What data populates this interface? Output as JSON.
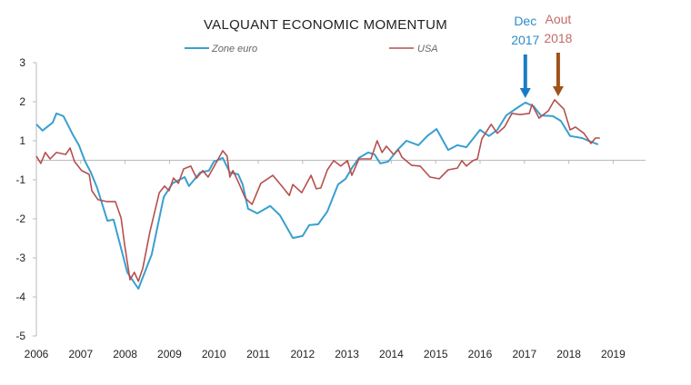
{
  "chart_data": {
    "type": "line",
    "title": "VALQUANT ECONOMIC MOMENTUM",
    "xlabel": "",
    "ylabel": "",
    "x_tick_labels": [
      "2006",
      "2007",
      "2008",
      "2009",
      "2010",
      "2011",
      "2012",
      "2013",
      "2014",
      "2015",
      "2016",
      "2017",
      "2018",
      "2019"
    ],
    "y_tick_labels": [
      "3",
      "2",
      "1",
      "-1",
      "-2",
      "-3",
      "-4",
      "-5"
    ],
    "y_ticks": [
      3,
      2,
      1,
      -1,
      -2,
      -3,
      -4,
      -5
    ],
    "xlim": [
      2006,
      2019.7
    ],
    "ylim": [
      -5,
      3
    ],
    "grid": false,
    "legend_position": "top",
    "series": [
      {
        "name": "Zone euro",
        "color": "#3a9fd0",
        "x": [
          2006.0,
          2006.14,
          2006.37,
          2006.45,
          2006.61,
          2006.82,
          2006.96,
          2007.09,
          2007.23,
          2007.37,
          2007.6,
          2007.74,
          2007.89,
          2008.05,
          2008.3,
          2008.6,
          2008.87,
          2009.07,
          2009.34,
          2009.44,
          2009.69,
          2009.89,
          2010.0,
          2010.2,
          2010.36,
          2010.55,
          2010.65,
          2010.77,
          2010.98,
          2011.27,
          2011.49,
          2011.78,
          2012.0,
          2012.15,
          2012.35,
          2012.56,
          2012.8,
          2012.97,
          2013.11,
          2013.27,
          2013.48,
          2013.62,
          2013.75,
          2013.93,
          2014.14,
          2014.34,
          2014.61,
          2014.81,
          2015.02,
          2015.28,
          2015.49,
          2015.69,
          2016.0,
          2016.2,
          2016.39,
          2016.59,
          2016.86,
          2017.02,
          2017.21,
          2017.37,
          2017.64,
          2017.82,
          2018.03,
          2018.3,
          2018.44,
          2018.66
        ],
        "values": [
          1.42,
          1.26,
          1.47,
          1.7,
          1.63,
          1.16,
          0.77,
          -0.02,
          -0.63,
          -1.21,
          -2.05,
          -2.02,
          -2.67,
          -3.37,
          -3.79,
          -2.91,
          -1.44,
          -1.09,
          -0.86,
          -1.16,
          -0.63,
          -0.53,
          -0.07,
          0.12,
          -0.63,
          -0.72,
          -1.12,
          -1.74,
          -1.86,
          -1.67,
          -1.91,
          -2.49,
          -2.44,
          -2.16,
          -2.14,
          -1.81,
          -1.12,
          -0.95,
          -0.4,
          0.12,
          0.4,
          0.3,
          -0.16,
          -0.07,
          0.53,
          1.0,
          0.77,
          1.12,
          1.3,
          0.53,
          0.77,
          0.67,
          1.28,
          1.12,
          1.28,
          1.65,
          1.86,
          1.98,
          1.88,
          1.65,
          1.63,
          1.51,
          1.12,
          1.07,
          1.0,
          0.81
        ]
      },
      {
        "name": "USA",
        "color": "#b5504e",
        "x": [
          2006.0,
          2006.1,
          2006.2,
          2006.31,
          2006.45,
          2006.66,
          2006.76,
          2006.86,
          2007.02,
          2007.19,
          2007.25,
          2007.39,
          2007.6,
          2007.78,
          2007.91,
          2007.99,
          2008.11,
          2008.21,
          2008.3,
          2008.4,
          2008.56,
          2008.77,
          2008.89,
          2008.99,
          2009.09,
          2009.2,
          2009.32,
          2009.48,
          2009.61,
          2009.75,
          2009.87,
          2010.1,
          2010.2,
          2010.3,
          2010.36,
          2010.43,
          2010.55,
          2010.71,
          2010.86,
          2011.06,
          2011.33,
          2011.53,
          2011.7,
          2011.78,
          2011.98,
          2012.19,
          2012.31,
          2012.41,
          2012.56,
          2012.7,
          2012.86,
          2013.01,
          2013.11,
          2013.27,
          2013.54,
          2013.68,
          2013.79,
          2013.89,
          2014.05,
          2014.16,
          2014.24,
          2014.46,
          2014.65,
          2014.87,
          2015.08,
          2015.28,
          2015.49,
          2015.59,
          2015.69,
          2015.84,
          2015.94,
          2016.04,
          2016.25,
          2016.39,
          2016.55,
          2016.72,
          2016.9,
          2017.11,
          2017.17,
          2017.33,
          2017.54,
          2017.68,
          2017.89,
          2018.03,
          2018.15,
          2018.34,
          2018.5,
          2018.6,
          2018.7
        ],
        "values": [
          0.21,
          -0.16,
          0.4,
          0.07,
          0.4,
          0.3,
          0.63,
          -0.07,
          -0.53,
          -0.72,
          -1.28,
          -1.51,
          -1.56,
          -1.56,
          -1.98,
          -2.67,
          -3.56,
          -3.37,
          -3.6,
          -3.26,
          -2.33,
          -1.33,
          -1.16,
          -1.28,
          -0.91,
          -1.09,
          -0.44,
          -0.3,
          -0.91,
          -0.53,
          -0.86,
          0.07,
          0.49,
          0.21,
          -0.86,
          -0.53,
          -1.05,
          -1.47,
          -1.63,
          -1.09,
          -0.77,
          -1.16,
          -1.4,
          -1.12,
          -1.33,
          -0.77,
          -1.23,
          -1.21,
          -0.49,
          -0.02,
          -0.3,
          -0.02,
          -0.77,
          0.07,
          0.07,
          1.0,
          0.4,
          0.72,
          0.3,
          0.53,
          0.16,
          -0.26,
          -0.3,
          -0.86,
          -0.95,
          -0.49,
          -0.4,
          -0.02,
          -0.3,
          -0.02,
          0.07,
          1.05,
          1.42,
          1.19,
          1.35,
          1.7,
          1.67,
          1.7,
          1.93,
          1.58,
          1.77,
          2.05,
          1.81,
          1.28,
          1.35,
          1.19,
          0.86,
          1.07,
          1.07
        ]
      }
    ],
    "annotations": [
      {
        "line1": "Dec",
        "line2": "2017",
        "color": "#2e8bc9",
        "arrow_color": "#1a7cc4",
        "x": 2017.02
      },
      {
        "line1": "Aout",
        "line2": "2018",
        "color": "#c46a66",
        "arrow_color": "#a0521a",
        "x": 2017.74
      }
    ]
  }
}
